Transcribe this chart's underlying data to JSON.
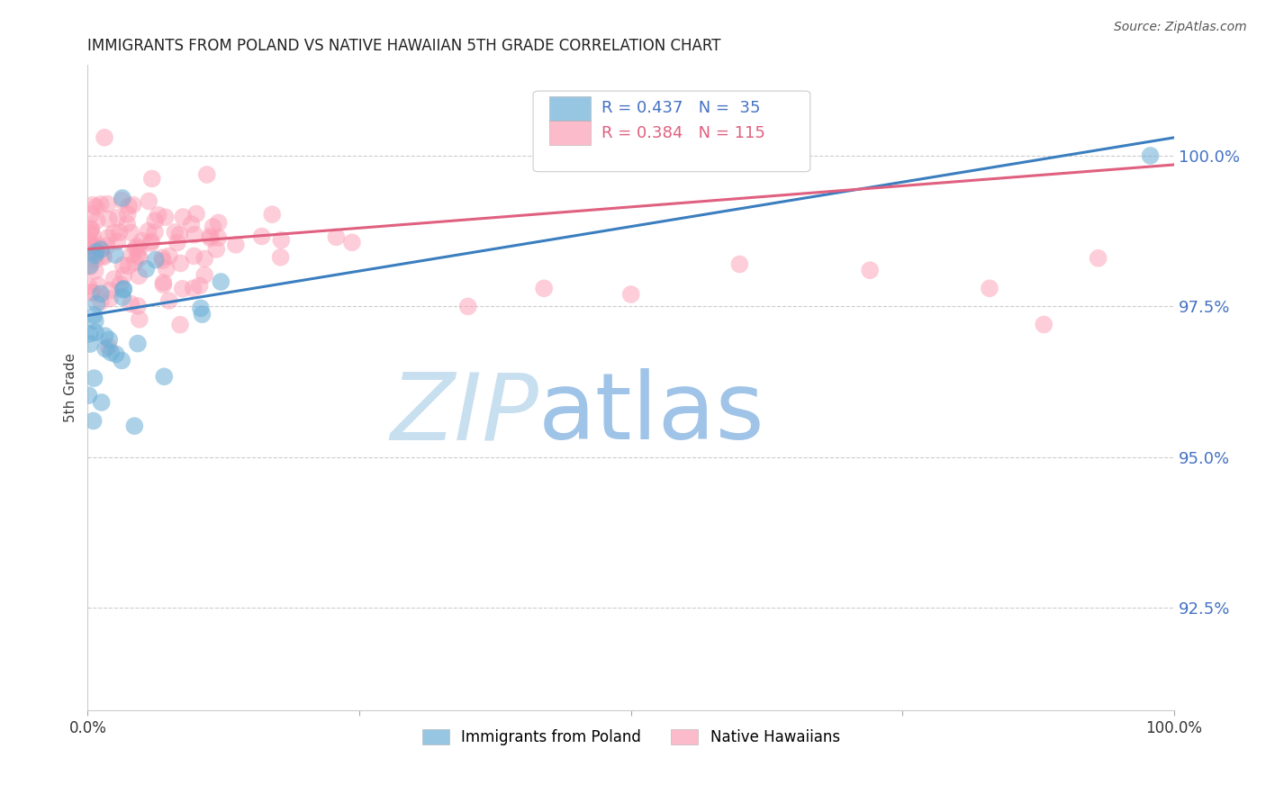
{
  "title": "IMMIGRANTS FROM POLAND VS NATIVE HAWAIIAN 5TH GRADE CORRELATION CHART",
  "source": "Source: ZipAtlas.com",
  "ylabel": "5th Grade",
  "ytick_labels": [
    "100.0%",
    "97.5%",
    "95.0%",
    "92.5%"
  ],
  "ytick_values": [
    1.0,
    0.975,
    0.95,
    0.925
  ],
  "xlim": [
    0.0,
    1.0
  ],
  "ylim": [
    0.908,
    1.015
  ],
  "color_blue": "#6baed6",
  "color_pink": "#fc9eb5",
  "color_trendline_blue": "#3a7ebf",
  "color_trendline_pink": "#e06080",
  "color_ytick": "#4472c4",
  "color_title": "#222222",
  "background_color": "#ffffff",
  "watermark_zip": "ZIP",
  "watermark_atlas": "atlas",
  "watermark_color_zip": "#c8dff0",
  "watermark_color_atlas": "#a0c4e8",
  "blue_trend_x0": 0.0,
  "blue_trend_y0": 0.9735,
  "blue_trend_x1": 1.0,
  "blue_trend_y1": 1.003,
  "pink_trend_x0": 0.0,
  "pink_trend_y0": 0.9845,
  "pink_trend_x1": 1.0,
  "pink_trend_y1": 0.9985
}
